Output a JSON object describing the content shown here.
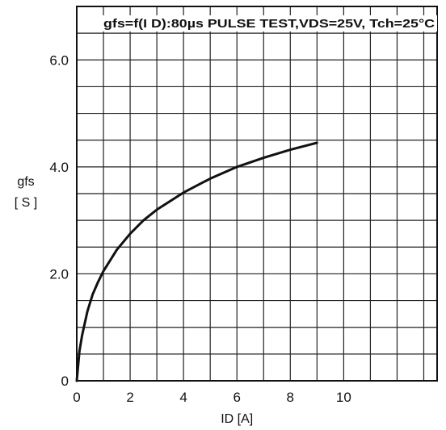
{
  "chart_data": {
    "type": "line",
    "title": "",
    "annotation": "gfs=f(I D):80µs PULSE TEST,VDS=25V, Tch=25°C",
    "xlabel": "ID [A]",
    "ylabel_line1": "gfs",
    "ylabel_line2": "[ S ]",
    "xlim": [
      0,
      13.5
    ],
    "ylim": [
      0,
      7.0
    ],
    "xticks": [
      0,
      2,
      4,
      6,
      8,
      10
    ],
    "xtick_labels": [
      "0",
      "2",
      "4",
      "6",
      "8",
      "10"
    ],
    "yticks": [
      0,
      2.0,
      4.0,
      6.0
    ],
    "ytick_labels": [
      "0",
      "2.0",
      "4.0",
      "6.0"
    ],
    "grid": true,
    "series": [
      {
        "x": [
          0.0,
          0.1,
          0.2,
          0.4,
          0.6,
          0.8,
          1.0,
          1.5,
          2.0,
          2.5,
          3.0,
          4.0,
          5.0,
          6.0,
          7.0,
          8.0,
          9.0
        ],
        "y": [
          0.0,
          0.55,
          0.85,
          1.3,
          1.62,
          1.85,
          2.05,
          2.45,
          2.75,
          3.0,
          3.2,
          3.52,
          3.78,
          4.0,
          4.17,
          4.32,
          4.45
        ]
      }
    ]
  }
}
